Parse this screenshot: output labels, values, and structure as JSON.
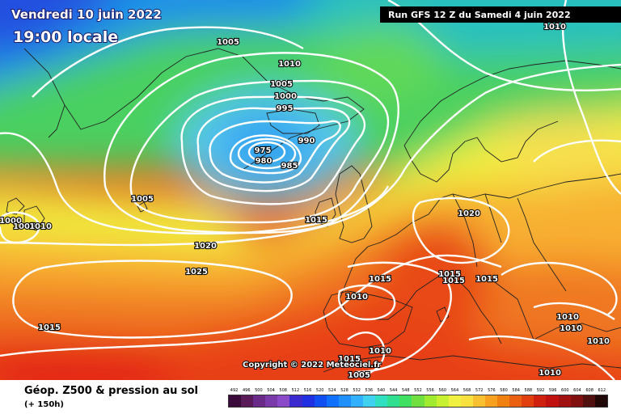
{
  "header": {
    "date": "Vendredi 10 juin 2022",
    "time": "19:00 locale",
    "run": "Run GFS 12 Z du Samedi 4 juin 2022"
  },
  "copyright": "Copyright © 2022 Meteociel.fr",
  "footer": {
    "title": "Géop. Z500 & pression au sol",
    "subtitle": "(+ 150h)"
  },
  "isobar_labels": [
    "1005",
    "1010",
    "1005",
    "1000",
    "995",
    "990",
    "975",
    "980",
    "985",
    "1005",
    "1000",
    "1005",
    "1010",
    "1015",
    "1020",
    "1025",
    "1015",
    "1020",
    "1015",
    "1015",
    "1015",
    "1015",
    "1010",
    "1010",
    "1010",
    "1010",
    "1010",
    "1010",
    "1015",
    "1005",
    "1010"
  ],
  "scale": {
    "values": [
      "492",
      "496",
      "500",
      "504",
      "508",
      "512",
      "516",
      "520",
      "524",
      "528",
      "532",
      "536",
      "540",
      "544",
      "548",
      "552",
      "556",
      "560",
      "564",
      "568",
      "572",
      "576",
      "580",
      "584",
      "588",
      "592",
      "596",
      "600",
      "604",
      "608",
      "612"
    ],
    "colors": [
      "#3a0a3a",
      "#5a1a5a",
      "#6a2a8a",
      "#7a3aaa",
      "#8a4aca",
      "#3a2ad0",
      "#2030e0",
      "#1050f0",
      "#1070ff",
      "#2090ff",
      "#30b0ff",
      "#40d0f0",
      "#30e0c0",
      "#30e090",
      "#40e060",
      "#70e040",
      "#a0ea30",
      "#c8f030",
      "#f0f040",
      "#f8e040",
      "#f8c030",
      "#f8a020",
      "#f08010",
      "#e86010",
      "#e04010",
      "#d02010",
      "#c01010",
      "#a01010",
      "#801010",
      "#501010",
      "#200808"
    ]
  },
  "colors": {
    "isobar": "#ffffff",
    "land_outline": "#222222"
  }
}
